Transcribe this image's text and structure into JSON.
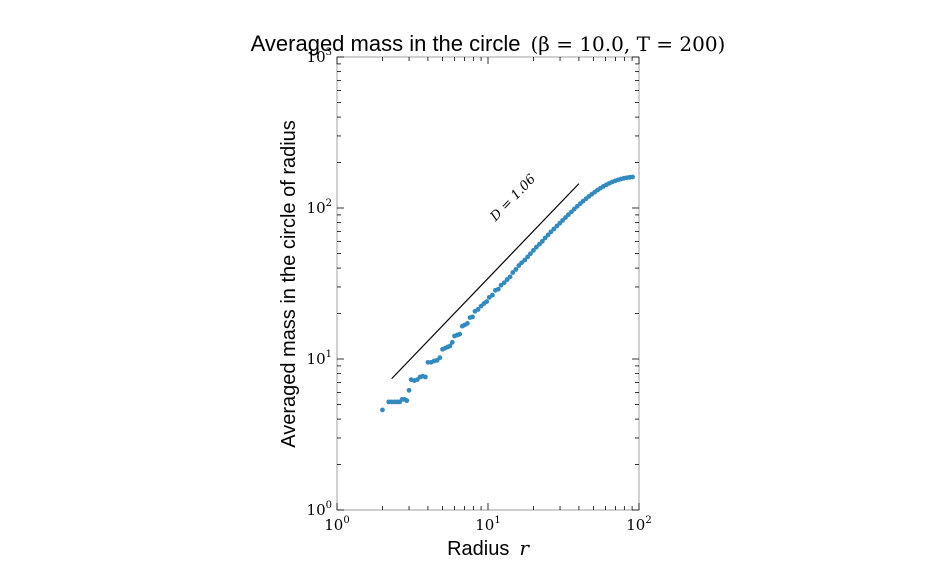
{
  "chart_data": {
    "type": "scatter",
    "title": "Averaged mass in the circle",
    "title_math": "(β = 10.0, T = 200)",
    "xlabel": "Radius",
    "xlabel_math": "r",
    "ylabel": "Averaged mass in the circle of radius",
    "xscale": "log",
    "yscale": "log",
    "xlim": [
      1,
      100
    ],
    "ylim": [
      1,
      1000
    ],
    "x_ticks": [
      {
        "base": "10",
        "exp": "0",
        "value": 1
      },
      {
        "base": "10",
        "exp": "1",
        "value": 10
      },
      {
        "base": "10",
        "exp": "2",
        "value": 100
      }
    ],
    "y_ticks": [
      {
        "base": "10",
        "exp": "0",
        "value": 1
      },
      {
        "base": "10",
        "exp": "1",
        "value": 10
      },
      {
        "base": "10",
        "exp": "2",
        "value": 100
      },
      {
        "base": "10",
        "exp": "3",
        "value": 1000
      }
    ],
    "grid": false,
    "marker_color": "#348abd",
    "series": [
      {
        "values": [
          [
            2.0,
            4.6
          ],
          [
            2.2,
            5.2
          ],
          [
            2.3,
            5.2
          ],
          [
            2.4,
            5.2
          ],
          [
            2.5,
            5.2
          ],
          [
            2.6,
            5.2
          ],
          [
            2.7,
            5.4
          ],
          [
            2.8,
            5.4
          ],
          [
            2.9,
            5.3
          ],
          [
            3.0,
            6.2
          ],
          [
            3.1,
            7.3
          ],
          [
            3.25,
            7.2
          ],
          [
            3.4,
            7.3
          ],
          [
            3.55,
            7.6
          ],
          [
            3.7,
            7.7
          ],
          [
            3.85,
            7.6
          ],
          [
            4.0,
            9.5
          ],
          [
            4.2,
            9.5
          ],
          [
            4.4,
            9.7
          ],
          [
            4.6,
            9.8
          ],
          [
            4.8,
            10.2
          ],
          [
            5.0,
            11.6
          ],
          [
            5.2,
            11.8
          ],
          [
            5.4,
            12.0
          ],
          [
            5.6,
            12.2
          ],
          [
            5.8,
            12.9
          ],
          [
            6.0,
            14.2
          ],
          [
            6.25,
            14.4
          ],
          [
            6.5,
            14.6
          ],
          [
            6.75,
            16.5
          ],
          [
            7.0,
            16.8
          ],
          [
            7.3,
            17.2
          ],
          [
            7.6,
            18.8
          ],
          [
            7.9,
            19.0
          ],
          [
            8.2,
            20.7
          ],
          [
            8.6,
            21.3
          ],
          [
            9.0,
            22.4
          ],
          [
            9.4,
            23.3
          ],
          [
            9.8,
            24.0
          ],
          [
            10.2,
            25.6
          ],
          [
            10.7,
            26.5
          ],
          [
            11.2,
            28.5
          ],
          [
            11.7,
            29.0
          ],
          [
            12.2,
            30.8
          ],
          [
            12.8,
            32.0
          ],
          [
            13.4,
            33.6
          ],
          [
            14.0,
            35.0
          ],
          [
            14.6,
            37.4
          ],
          [
            15.3,
            39.2
          ],
          [
            16.0,
            41.6
          ],
          [
            16.7,
            43.4
          ],
          [
            17.5,
            45.2
          ],
          [
            18.3,
            47.4
          ],
          [
            19.1,
            49.8
          ],
          [
            20.0,
            52.4
          ],
          [
            20.9,
            55.0
          ],
          [
            21.9,
            57.6
          ],
          [
            22.9,
            60.2
          ],
          [
            23.9,
            63.3
          ],
          [
            25.0,
            66.3
          ],
          [
            26.1,
            69.5
          ],
          [
            27.3,
            72.6
          ],
          [
            28.6,
            76.0
          ],
          [
            29.9,
            79.3
          ],
          [
            31.2,
            82.8
          ],
          [
            32.6,
            86.5
          ],
          [
            34.1,
            90.4
          ],
          [
            35.7,
            94.3
          ],
          [
            37.3,
            98.4
          ],
          [
            39.0,
            102.6
          ],
          [
            40.8,
            106.8
          ],
          [
            42.6,
            111.0
          ],
          [
            44.6,
            115.2
          ],
          [
            46.6,
            119.3
          ],
          [
            48.7,
            123.4
          ],
          [
            50.9,
            127.6
          ],
          [
            53.2,
            131.5
          ],
          [
            55.6,
            135.4
          ],
          [
            58.1,
            139.0
          ],
          [
            60.8,
            142.4
          ],
          [
            63.5,
            145.6
          ],
          [
            66.4,
            148.6
          ],
          [
            69.4,
            151.2
          ],
          [
            72.6,
            153.5
          ],
          [
            75.9,
            155.5
          ],
          [
            79.3,
            157.2
          ],
          [
            82.9,
            158.6
          ],
          [
            86.7,
            159.7
          ],
          [
            90.6,
            160.5
          ]
        ]
      }
    ],
    "annotations": [
      {
        "text": "D = 1.06",
        "line": {
          "x": [
            2.3,
            40
          ],
          "y": [
            7.4,
            145
          ]
        }
      }
    ]
  }
}
